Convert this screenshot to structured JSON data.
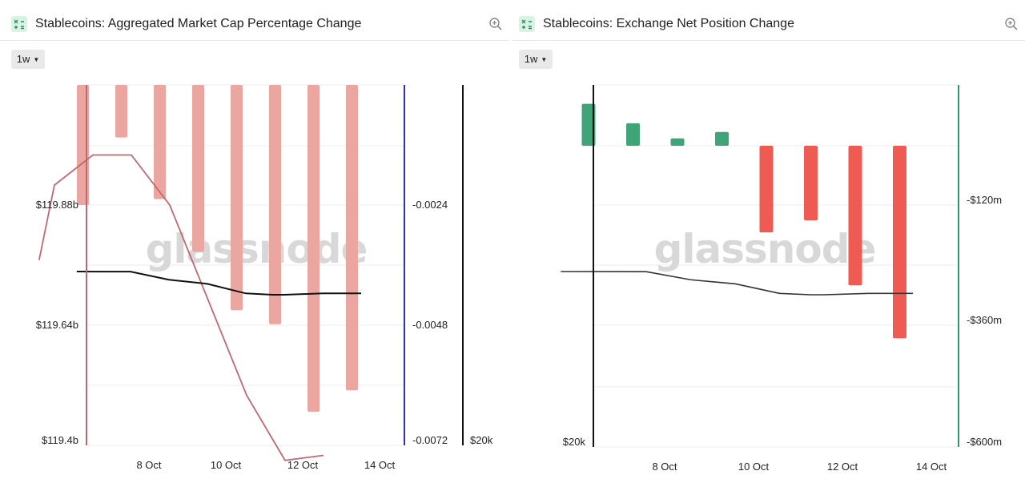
{
  "watermark": "glassnode",
  "panels": [
    {
      "title": "Stablecoins: Aggregated Market Cap Percentage Change",
      "period": "1w",
      "icons": {
        "calc": "calculator-icon",
        "zoom": "zoom-in-icon"
      }
    },
    {
      "title": "Stablecoins: Exchange Net Position Change",
      "period": "1w",
      "icons": {
        "calc": "calculator-icon",
        "zoom": "zoom-in-icon"
      }
    }
  ],
  "chart_data": [
    {
      "type": "bar",
      "title": "Stablecoins: Aggregated Market Cap Percentage Change",
      "x_ticks": [
        "8 Oct",
        "10 Oct",
        "12 Oct",
        "14 Oct"
      ],
      "left_axis": {
        "ticks": [
          "$119.88b",
          "$119.64b",
          "$119.4b"
        ],
        "values": [
          119.88,
          119.64,
          119.4
        ],
        "range": [
          119.4,
          120.12
        ]
      },
      "right_axis": {
        "ticks": [
          "-0.0024",
          "-0.0048",
          "-0.0072"
        ],
        "values": [
          -0.0024,
          -0.0048,
          -0.0072
        ],
        "range": [
          -0.0072,
          0
        ]
      },
      "far_axis": {
        "ticks": [
          "$20k"
        ]
      },
      "bar_color": "#eba6a1",
      "market_cap_line_color": "#c0686f",
      "price_line_color": "#111111",
      "bars": {
        "dates": [
          "7 Oct",
          "8 Oct",
          "9 Oct",
          "10 Oct",
          "11 Oct",
          "12 Oct",
          "13 Oct",
          "14 Oct"
        ],
        "values": [
          -0.0024,
          -0.00105,
          -0.00228,
          -0.00333,
          -0.0045,
          -0.00478,
          -0.00653,
          -0.0061
        ]
      },
      "market_cap_line": {
        "dates": [
          "6.6 Oct",
          "7 Oct",
          "8 Oct",
          "9 Oct",
          "10 Oct",
          "11 Oct",
          "12 Oct",
          "13 Oct",
          "14 Oct"
        ],
        "values": [
          119.77,
          119.92,
          119.98,
          119.98,
          119.88,
          119.69,
          119.5,
          119.37,
          119.38
        ]
      },
      "price_line": {
        "dates": [
          "6.6 Oct",
          "8 Oct",
          "9 Oct",
          "10 Oct",
          "11 Oct",
          "11.7 Oct",
          "12 Oct",
          "13 Oct",
          "14 Oct"
        ],
        "values": [
          0.0,
          -0.001,
          -0.06,
          -0.09,
          -0.16,
          -0.17,
          -0.17,
          -0.16,
          -0.16
        ]
      }
    },
    {
      "type": "bar",
      "title": "Stablecoins: Exchange Net Position Change",
      "x_ticks": [
        "8 Oct",
        "10 Oct",
        "12 Oct",
        "14 Oct"
      ],
      "left_axis": {
        "ticks": [
          "$20k"
        ]
      },
      "right_axis": {
        "ticks": [
          "-$120m",
          "-$360m",
          "-$600m"
        ],
        "values": [
          -120,
          -360,
          -600
        ],
        "range": [
          -600,
          120
        ]
      },
      "positive_color": "#3fa478",
      "negative_color": "#ef5b53",
      "price_line_color": "#333333",
      "bars": {
        "dates": [
          "7 Oct",
          "8 Oct",
          "9 Oct",
          "10 Oct",
          "11 Oct",
          "12 Oct",
          "13 Oct",
          "14 Oct"
        ],
        "values": [
          91,
          49,
          16,
          30,
          -188,
          -162,
          -303,
          -418
        ]
      },
      "price_line": {
        "dates": [
          "6.6 Oct",
          "8 Oct",
          "9 Oct",
          "10 Oct",
          "11 Oct",
          "11.7 Oct",
          "12 Oct",
          "13 Oct",
          "14 Oct"
        ],
        "values": [
          0.0,
          -0.001,
          -0.06,
          -0.09,
          -0.16,
          -0.17,
          -0.17,
          -0.16,
          -0.16
        ]
      }
    }
  ]
}
